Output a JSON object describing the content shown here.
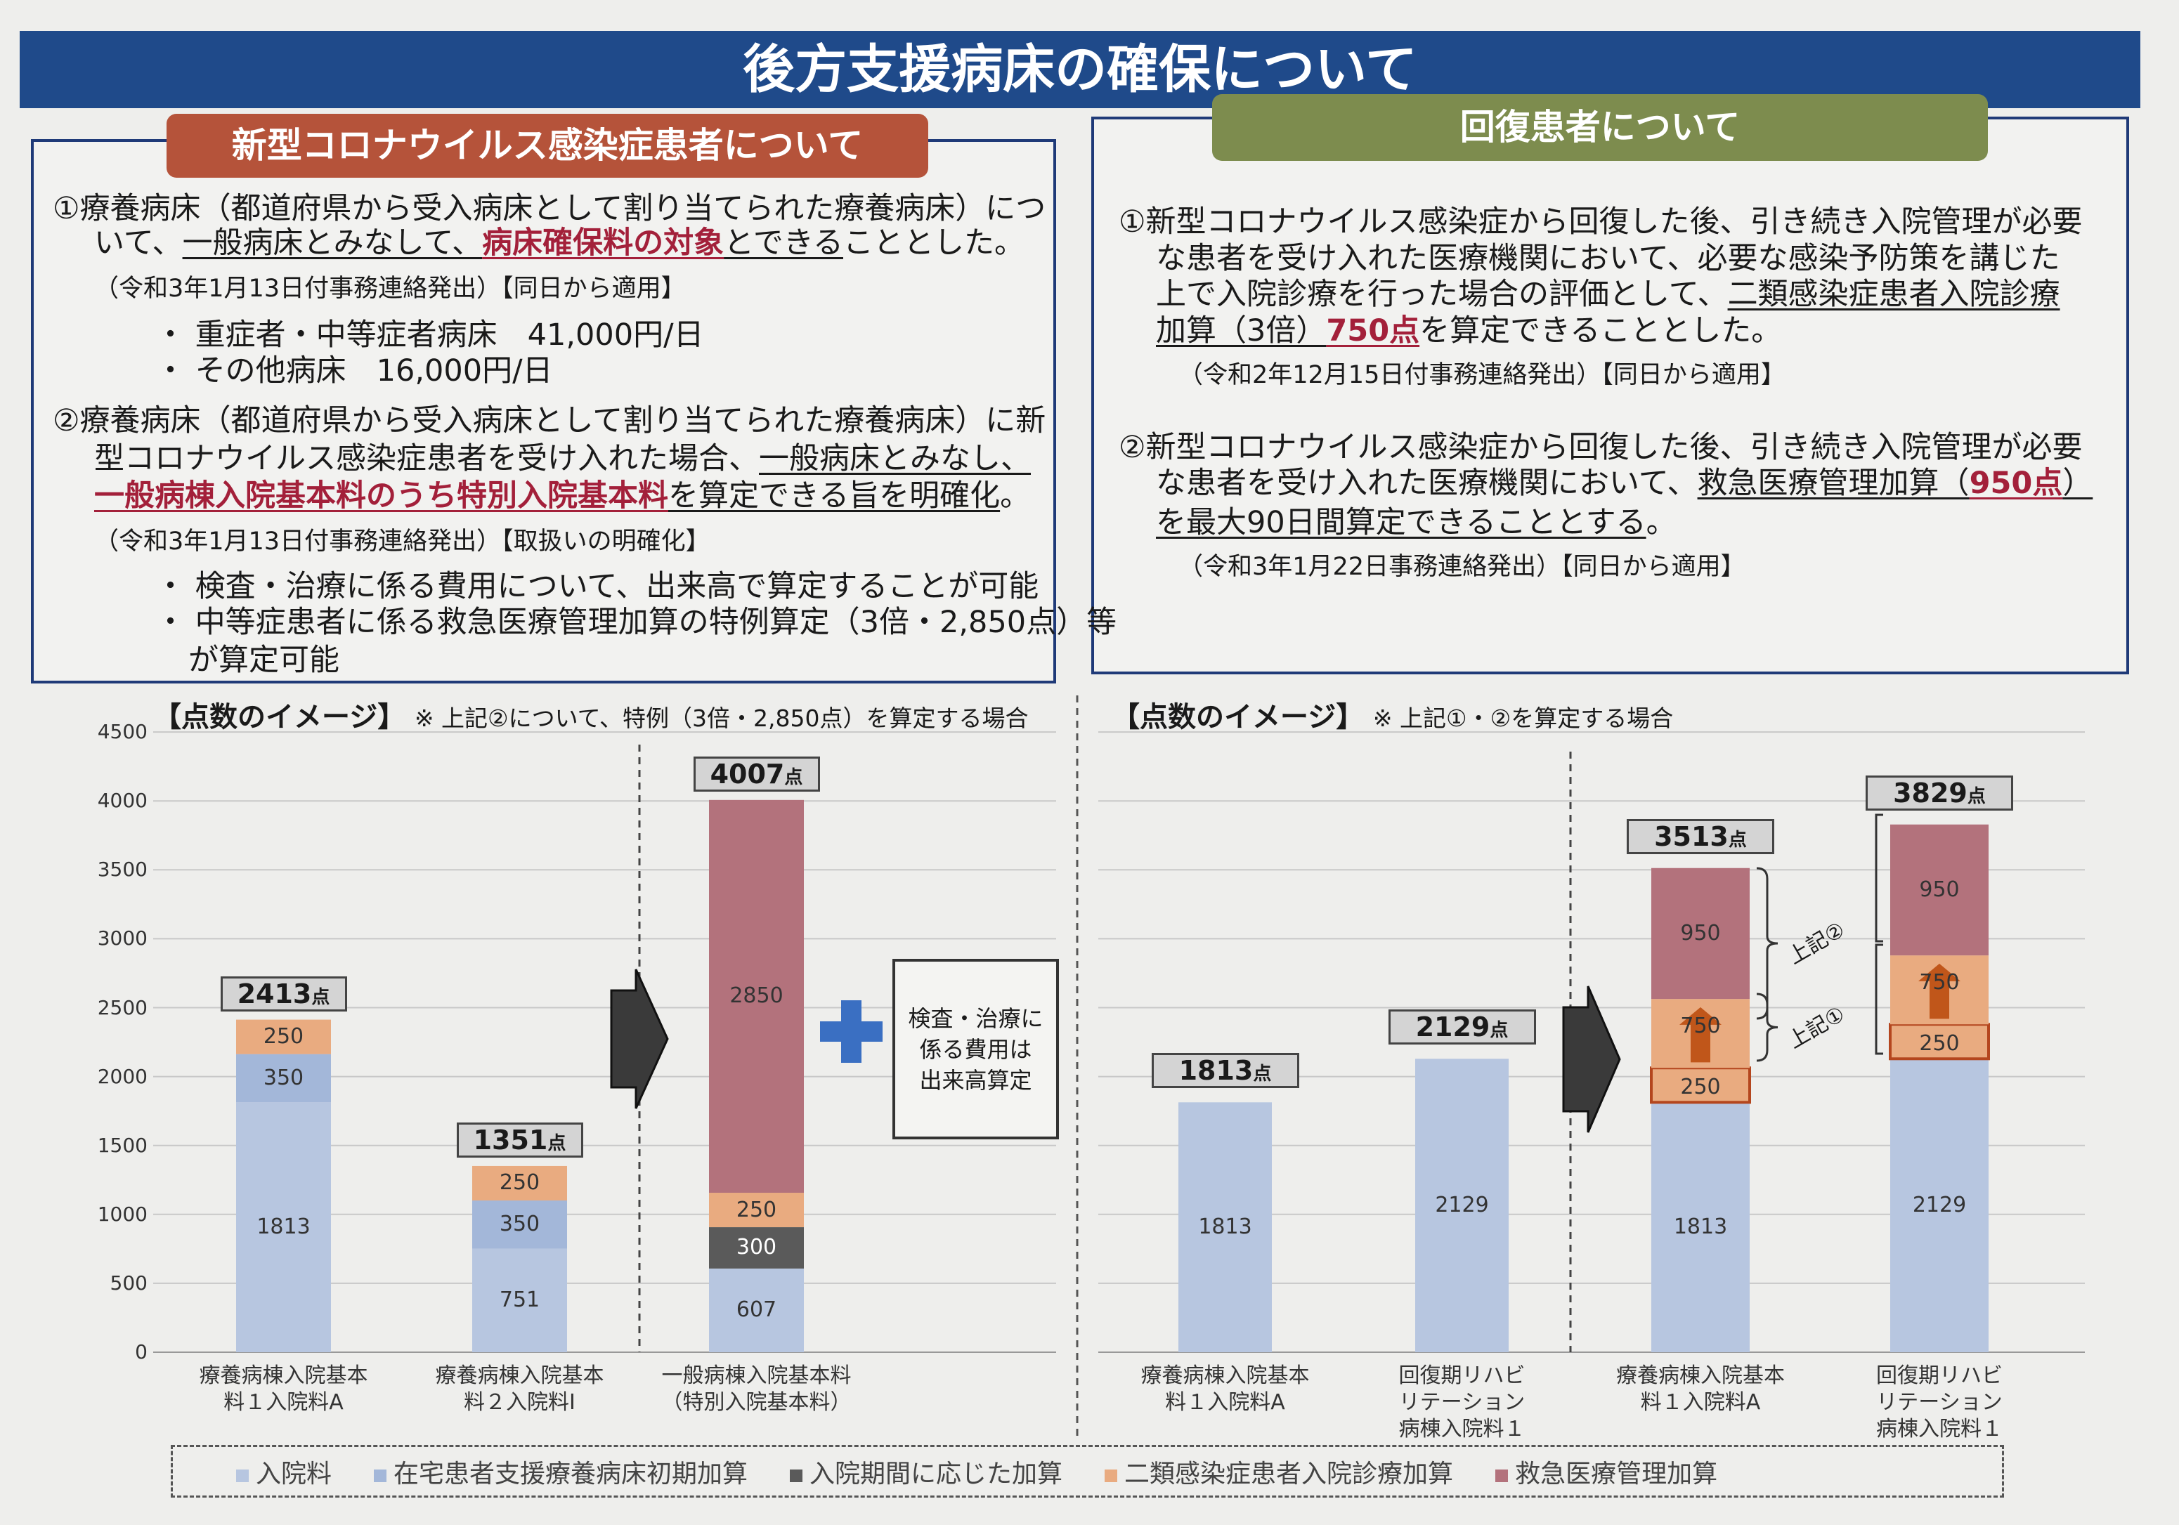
{
  "title": "後方支援病床の確保について",
  "left": {
    "header": "新型コロナウイルス感染症患者について",
    "lines": [
      {
        "kind": "main",
        "x": 75,
        "segs": [
          {
            "t": "①療養病床（都道府県から受入病床として割り当てられた療養病床）につ"
          }
        ]
      },
      {
        "kind": "main",
        "x": 134,
        "segs": [
          {
            "t": "いて、"
          },
          {
            "t": "一般病床とみなして、",
            "u": 1
          },
          {
            "t": "病床確保料の対象",
            "u": 1,
            "r": 1
          },
          {
            "t": "とできる",
            "u": 1
          },
          {
            "t": "こととした。"
          }
        ]
      },
      {
        "kind": "note",
        "x": 134,
        "segs": [
          {
            "t": "（令和3年1月13日付事務連絡発出）【同日から適用】"
          }
        ]
      },
      {
        "kind": "main",
        "x": 221,
        "segs": [
          {
            "t": "・ 重症者・中等症者病床　41,000円/日"
          }
        ]
      },
      {
        "kind": "main",
        "x": 221,
        "segs": [
          {
            "t": "・ その他病床　16,000円/日"
          }
        ]
      },
      {
        "kind": "main",
        "x": 75,
        "segs": [
          {
            "t": "②療養病床（都道府県から受入病床として割り当てられた療養病床）に新"
          }
        ]
      },
      {
        "kind": "main",
        "x": 134,
        "segs": [
          {
            "t": "型コロナウイルス感染症患者を受け入れた場合、"
          },
          {
            "t": "一般病床とみなし、",
            "u": 1
          }
        ]
      },
      {
        "kind": "main",
        "x": 134,
        "segs": [
          {
            "t": "一般病棟入院基本料のうち特別入院基本料",
            "u": 1,
            "r": 1
          },
          {
            "t": "を算定できる旨を明確化",
            "u": 1
          },
          {
            "t": "。"
          }
        ]
      },
      {
        "kind": "note",
        "x": 134,
        "segs": [
          {
            "t": "（令和3年1月13日付事務連絡発出）【取扱いの明確化】"
          }
        ]
      },
      {
        "kind": "main",
        "x": 221,
        "segs": [
          {
            "t": "・ 検査・治療に係る費用について、出来高で算定することが可能"
          }
        ]
      },
      {
        "kind": "main",
        "x": 221,
        "segs": [
          {
            "t": "・ 中等症患者に係る救急医療管理加算の特例算定（3倍・2,850点）等"
          }
        ]
      },
      {
        "kind": "main",
        "x": 268,
        "segs": [
          {
            "t": "が算定可能"
          }
        ]
      }
    ]
  },
  "right": {
    "header": "回復患者について",
    "lines": [
      {
        "kind": "main",
        "x": 1592,
        "segs": [
          {
            "t": "①新型コロナウイルス感染症から回復した後、引き続き入院管理が必要"
          }
        ]
      },
      {
        "kind": "main",
        "x": 1645,
        "segs": [
          {
            "t": "な患者を受け入れた医療機関において、必要な感染予防策を講じた"
          }
        ]
      },
      {
        "kind": "main",
        "x": 1645,
        "segs": [
          {
            "t": "上で入院診療を行った場合の評価として、"
          },
          {
            "t": "二類感染症患者入院診療",
            "u": 1
          }
        ]
      },
      {
        "kind": "main",
        "x": 1645,
        "segs": [
          {
            "t": "加算（3倍）",
            "u": 1
          },
          {
            "t": "750点",
            "u": 1,
            "r": 1
          },
          {
            "t": "を算定できることとした。"
          }
        ]
      },
      {
        "kind": "note",
        "x": 1677,
        "segs": [
          {
            "t": "（令和2年12月15日付事務連絡発出）【同日から適用】"
          }
        ]
      },
      {
        "kind": "main",
        "x": 1592,
        "segs": [
          {
            "t": "②新型コロナウイルス感染症から回復した後、引き続き入院管理が必要"
          }
        ]
      },
      {
        "kind": "main",
        "x": 1645,
        "segs": [
          {
            "t": "な患者を受け入れた医療機関において、"
          },
          {
            "t": "救急医療管理加算（",
            "u": 1
          },
          {
            "t": "950点",
            "u": 1,
            "r": 1
          },
          {
            "t": "）",
            "u": 1
          }
        ]
      },
      {
        "kind": "main",
        "x": 1645,
        "segs": [
          {
            "t": "を最大90日間算定できることとする",
            "u": 1
          },
          {
            "t": "。"
          }
        ]
      },
      {
        "kind": "note",
        "x": 1677,
        "segs": [
          {
            "t": "（令和3年1月22日事務連絡発出）【同日から適用】"
          }
        ]
      }
    ]
  },
  "plus_box": "検査・治療に\n係る費用は\n出来高算定",
  "brace_labels": [
    "上記②",
    "上記①"
  ],
  "chart_data": [
    {
      "type": "bar",
      "stacked": true,
      "title": "【点数のイメージ】",
      "subtitle": "※ 上記②について、特例（3倍・2,850点）を算定する場合",
      "ylim": [
        0,
        4500
      ],
      "yticks": [
        0,
        500,
        1000,
        1500,
        2000,
        2500,
        3000,
        3500,
        4000,
        4500
      ],
      "categories": [
        "療養病棟入院基本\n料１入院料A",
        "療養病棟入院基本\n料２入院料Ⅰ",
        "一般病棟入院基本料\n（特別入院基本料）"
      ],
      "totals": [
        "2413",
        "1351",
        "4007"
      ],
      "unit": "点",
      "bars": [
        [
          {
            "s": 0,
            "v": 1813,
            "l": "1813"
          },
          {
            "s": 1,
            "v": 350,
            "l": "350"
          },
          {
            "s": 3,
            "v": 250,
            "l": "250"
          }
        ],
        [
          {
            "s": 0,
            "v": 751,
            "l": "751"
          },
          {
            "s": 1,
            "v": 350,
            "l": "350"
          },
          {
            "s": 3,
            "v": 250,
            "l": "250"
          }
        ],
        [
          {
            "s": 0,
            "v": 607,
            "l": "607"
          },
          {
            "s": 2,
            "v": 300,
            "l": "300"
          },
          {
            "s": 3,
            "v": 250,
            "l": "250"
          },
          {
            "s": 4,
            "v": 2850,
            "l": "2850"
          }
        ]
      ]
    },
    {
      "type": "bar",
      "stacked": true,
      "title": "【点数のイメージ】",
      "subtitle": "※ 上記①・②を算定する場合",
      "ylim": [
        0,
        4500
      ],
      "categories": [
        "療養病棟入院基本\n料１入院料A",
        "回復期リハビ\nリテーション\n病棟入院料１",
        "療養病棟入院基本\n料１入院料A",
        "回復期リハビ\nリテーション\n病棟入院料１"
      ],
      "totals": [
        "1813",
        "2129",
        "3513",
        "3829"
      ],
      "unit": "点",
      "bars": [
        [
          {
            "s": 0,
            "v": 1813,
            "l": "1813"
          }
        ],
        [
          {
            "s": 0,
            "v": 2129,
            "l": "2129"
          }
        ],
        [
          {
            "s": 0,
            "v": 1813,
            "l": "1813"
          },
          {
            "s": 3,
            "v": 250,
            "l": "250",
            "outline": true
          },
          {
            "s": 3,
            "v": 500,
            "l": "750"
          },
          {
            "s": 4,
            "v": 950,
            "l": "950"
          }
        ],
        [
          {
            "s": 0,
            "v": 2129,
            "l": "2129"
          },
          {
            "s": 3,
            "v": 250,
            "l": "250",
            "outline": true
          },
          {
            "s": 3,
            "v": 500,
            "l": "750"
          },
          {
            "s": 4,
            "v": 950,
            "l": "950"
          }
        ]
      ]
    }
  ],
  "legend": [
    {
      "label": "入院料",
      "color": "#b7c6e0"
    },
    {
      "label": "在宅患者支援療養病床初期加算",
      "color": "#a3b7d9"
    },
    {
      "label": "入院期間に応じた加算",
      "color": "#5a5a5a"
    },
    {
      "label": "二類感染症患者入院診療加算",
      "color": "#e9ab80"
    },
    {
      "label": "救急医療管理加算",
      "color": "#b3727c"
    }
  ]
}
